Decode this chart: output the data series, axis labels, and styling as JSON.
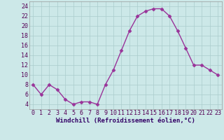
{
  "x": [
    0,
    1,
    2,
    3,
    4,
    5,
    6,
    7,
    8,
    9,
    10,
    11,
    12,
    13,
    14,
    15,
    16,
    17,
    18,
    19,
    20,
    21,
    22,
    23
  ],
  "y": [
    8,
    6,
    8,
    7,
    5,
    4,
    4.5,
    4.5,
    4,
    8,
    11,
    15,
    19,
    22,
    23,
    23.5,
    23.5,
    22,
    19,
    15.5,
    12,
    12,
    11,
    10
  ],
  "line_color": "#993399",
  "marker_color": "#993399",
  "bg_color": "#cce8e8",
  "grid_color": "#aacccc",
  "xlabel": "Windchill (Refroidissement éolien,°C)",
  "xlim": [
    -0.5,
    23.5
  ],
  "ylim": [
    3,
    25
  ],
  "yticks": [
    4,
    6,
    8,
    10,
    12,
    14,
    16,
    18,
    20,
    22,
    24
  ],
  "xticks": [
    0,
    1,
    2,
    3,
    4,
    5,
    6,
    7,
    8,
    9,
    10,
    11,
    12,
    13,
    14,
    15,
    16,
    17,
    18,
    19,
    20,
    21,
    22,
    23
  ],
  "xlabel_fontsize": 6.5,
  "tick_fontsize": 6,
  "linewidth": 1.0,
  "markersize": 2.5
}
